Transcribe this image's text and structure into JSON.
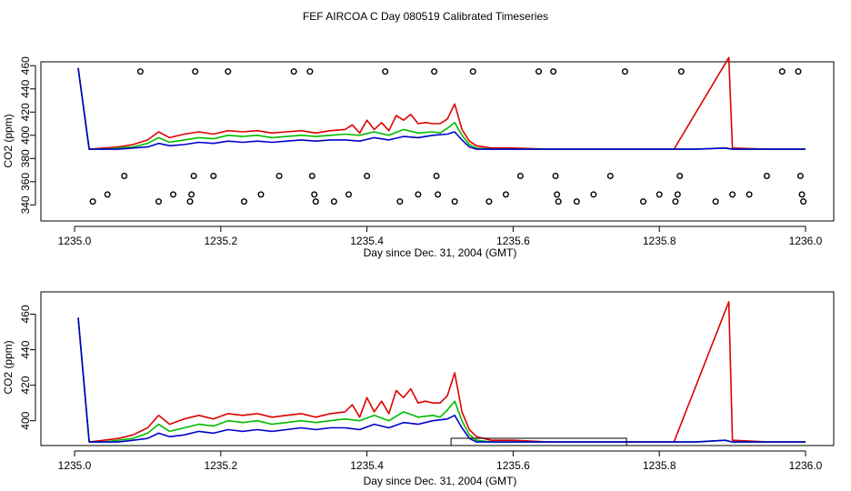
{
  "title": "FEF AIRCOA C  Day 080519  Calibrated Timeseries",
  "colors": {
    "red": "#dd0000",
    "green": "#00bb00",
    "blue": "#0000cc",
    "axis": "#000000"
  },
  "chart_data": [
    {
      "type": "line",
      "xlabel": "Day since Dec. 31, 2004 (GMT)",
      "ylabel": "CO2 (ppm)",
      "xlim": [
        1235.0,
        1236.0
      ],
      "ylim": [
        336,
        468
      ],
      "xticks": [
        "1235.0",
        "1235.2",
        "1235.4",
        "1235.6",
        "1235.8",
        "1236.0"
      ],
      "yticks": [
        "340",
        "360",
        "380",
        "400",
        "420",
        "440",
        "460"
      ],
      "series": [
        {
          "name": "red",
          "color": "#dd0000",
          "x": [
            1235.005,
            1235.02,
            1235.04,
            1235.06,
            1235.08,
            1235.1,
            1235.115,
            1235.13,
            1235.15,
            1235.17,
            1235.19,
            1235.21,
            1235.23,
            1235.25,
            1235.27,
            1235.29,
            1235.31,
            1235.33,
            1235.35,
            1235.37,
            1235.38,
            1235.39,
            1235.4,
            1235.41,
            1235.42,
            1235.43,
            1235.44,
            1235.45,
            1235.46,
            1235.47,
            1235.48,
            1235.49,
            1235.5,
            1235.51,
            1235.52,
            1235.53,
            1235.54,
            1235.55,
            1235.57,
            1235.6,
            1235.65,
            1235.7,
            1235.75,
            1235.8,
            1235.82,
            1235.895,
            1235.9,
            1235.95,
            1236.0
          ],
          "y": [
            458,
            388,
            389,
            390,
            392,
            396,
            403,
            398,
            401,
            403,
            401,
            404,
            403,
            404,
            402,
            403,
            404,
            402,
            404,
            405,
            409,
            402,
            413,
            405,
            411,
            404,
            417,
            413,
            418,
            410,
            411,
            410,
            410,
            414,
            427,
            405,
            395,
            391,
            389,
            389,
            388,
            388,
            388,
            388,
            388,
            467,
            389,
            388,
            388
          ]
        },
        {
          "name": "green",
          "color": "#00bb00",
          "x": [
            1235.005,
            1235.02,
            1235.04,
            1235.06,
            1235.08,
            1235.1,
            1235.115,
            1235.13,
            1235.15,
            1235.17,
            1235.19,
            1235.21,
            1235.23,
            1235.25,
            1235.27,
            1235.29,
            1235.31,
            1235.33,
            1235.35,
            1235.37,
            1235.39,
            1235.41,
            1235.43,
            1235.45,
            1235.47,
            1235.49,
            1235.5,
            1235.51,
            1235.52,
            1235.53,
            1235.54,
            1235.55,
            1235.57,
            1235.6,
            1235.65,
            1235.7,
            1235.75,
            1235.8,
            1235.85,
            1235.89,
            1235.9,
            1235.95,
            1236.0
          ],
          "y": [
            458,
            388,
            388,
            389,
            390,
            393,
            398,
            394,
            396,
            398,
            397,
            400,
            399,
            400,
            398,
            399,
            400,
            399,
            400,
            401,
            400,
            403,
            400,
            405,
            402,
            403,
            402,
            406,
            411,
            400,
            392,
            389,
            388,
            388,
            388,
            388,
            388,
            388,
            388,
            389,
            388,
            388,
            388
          ]
        },
        {
          "name": "blue",
          "color": "#0000cc",
          "x": [
            1235.005,
            1235.02,
            1235.04,
            1235.06,
            1235.08,
            1235.1,
            1235.115,
            1235.13,
            1235.15,
            1235.17,
            1235.19,
            1235.21,
            1235.23,
            1235.25,
            1235.27,
            1235.29,
            1235.31,
            1235.33,
            1235.35,
            1235.37,
            1235.39,
            1235.41,
            1235.43,
            1235.45,
            1235.47,
            1235.49,
            1235.51,
            1235.52,
            1235.53,
            1235.54,
            1235.55,
            1235.57,
            1235.6,
            1235.65,
            1235.7,
            1235.75,
            1235.8,
            1235.85,
            1235.89,
            1235.9,
            1235.95,
            1236.0
          ],
          "y": [
            458,
            388,
            388,
            388,
            389,
            390,
            393,
            391,
            392,
            394,
            393,
            395,
            394,
            395,
            394,
            395,
            396,
            395,
            396,
            396,
            395,
            398,
            396,
            399,
            398,
            400,
            401,
            403,
            396,
            390,
            388,
            388,
            388,
            388,
            388,
            388,
            388,
            388,
            389,
            388,
            388,
            388
          ]
        }
      ],
      "markers": {
        "name": "open circles",
        "x": [
          1235.025,
          1235.045,
          1235.068,
          1235.09,
          1235.115,
          1235.135,
          1235.158,
          1235.16,
          1235.163,
          1235.165,
          1235.19,
          1235.21,
          1235.232,
          1235.255,
          1235.28,
          1235.3,
          1235.322,
          1235.325,
          1235.328,
          1235.33,
          1235.355,
          1235.375,
          1235.4,
          1235.425,
          1235.445,
          1235.47,
          1235.492,
          1235.495,
          1235.497,
          1235.52,
          1235.545,
          1235.567,
          1235.59,
          1235.61,
          1235.635,
          1235.655,
          1235.658,
          1235.66,
          1235.662,
          1235.687,
          1235.71,
          1235.733,
          1235.753,
          1235.778,
          1235.8,
          1235.822,
          1235.825,
          1235.828,
          1235.83,
          1235.877,
          1235.9,
          1235.923,
          1235.947,
          1235.968,
          1235.99,
          1235.993,
          1235.995,
          1235.997
        ],
        "y": [
          343,
          349,
          365,
          455,
          343,
          349,
          343,
          349,
          365,
          455,
          365,
          455,
          343,
          349,
          365,
          455,
          455,
          365,
          349,
          343,
          343,
          349,
          365,
          455,
          343,
          349,
          455,
          365,
          349,
          343,
          455,
          343,
          349,
          365,
          455,
          455,
          365,
          349,
          343,
          343,
          349,
          365,
          455,
          343,
          349,
          343,
          349,
          365,
          455,
          343,
          349,
          349,
          365,
          455,
          455,
          365,
          349,
          343
        ]
      }
    },
    {
      "type": "line",
      "xlabel": "Day since Dec. 31, 2004 (GMT)",
      "ylabel": "CO2 (ppm)",
      "xlim": [
        1235.0,
        1236.0
      ],
      "ylim": [
        385,
        470
      ],
      "xticks": [
        "1235.0",
        "1235.2",
        "1235.4",
        "1235.6",
        "1235.8",
        "1236.0"
      ],
      "yticks": [
        "400",
        "420",
        "440",
        "460"
      ],
      "series": "same as panel 1 (no markers)",
      "highlight_range": {
        "x": [
          1235.515,
          1235.755
        ],
        "y": [
          385,
          388
        ]
      }
    }
  ]
}
